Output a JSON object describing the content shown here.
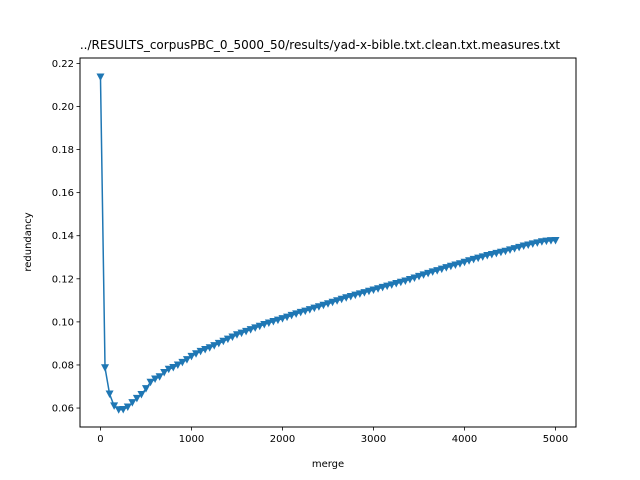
{
  "chart_data": {
    "type": "line",
    "title": "../RESULTS_corpusPBC_0_5000_50/results/yad-x-bible.txt.clean.txt.measures.txt",
    "xlabel": "merge",
    "ylabel": "redundancy",
    "xlim": [
      -225,
      5225
    ],
    "ylim": [
      0.0512,
      0.2225
    ],
    "xticks": [
      0,
      1000,
      2000,
      3000,
      4000,
      5000
    ],
    "yticks": [
      0.06,
      0.08,
      0.1,
      0.12,
      0.14,
      0.16,
      0.18,
      0.2,
      0.22
    ],
    "ytick_labels": [
      "0.06",
      "0.08",
      "0.10",
      "0.12",
      "0.14",
      "0.16",
      "0.18",
      "0.20",
      "0.22"
    ],
    "grid": false,
    "marker": "triangle-down",
    "line_color": "#1f77b4",
    "series": [
      {
        "x": [
          0,
          50,
          100,
          150,
          200,
          250,
          300,
          350,
          400,
          450,
          500,
          550,
          600,
          650,
          700,
          750,
          800,
          850,
          900,
          950,
          1000,
          1050,
          1100,
          1150,
          1200,
          1250,
          1300,
          1350,
          1400,
          1450,
          1500,
          1550,
          1600,
          1650,
          1700,
          1750,
          1800,
          1850,
          1900,
          1950,
          2000,
          2050,
          2100,
          2150,
          2200,
          2250,
          2300,
          2350,
          2400,
          2450,
          2500,
          2550,
          2600,
          2650,
          2700,
          2750,
          2800,
          2850,
          2900,
          2950,
          3000,
          3050,
          3100,
          3150,
          3200,
          3250,
          3300,
          3350,
          3400,
          3450,
          3500,
          3550,
          3600,
          3650,
          3700,
          3750,
          3800,
          3850,
          3900,
          3950,
          4000,
          4050,
          4100,
          4150,
          4200,
          4250,
          4300,
          4350,
          4400,
          4450,
          4500,
          4550,
          4600,
          4650,
          4700,
          4750,
          4800,
          4850,
          4900,
          4950,
          5000
        ],
        "y": [
          0.2137,
          0.0787,
          0.0665,
          0.061,
          0.0592,
          0.0593,
          0.0605,
          0.0625,
          0.0645,
          0.0663,
          0.069,
          0.072,
          0.0735,
          0.0745,
          0.0765,
          0.078,
          0.0788,
          0.08,
          0.0812,
          0.0825,
          0.084,
          0.0852,
          0.0863,
          0.0872,
          0.088,
          0.089,
          0.09,
          0.091,
          0.092,
          0.093,
          0.094,
          0.0948,
          0.0956,
          0.0964,
          0.0972,
          0.098,
          0.0988,
          0.0995,
          0.1002,
          0.1008,
          0.1015,
          0.1022,
          0.103,
          0.1037,
          0.1044,
          0.105,
          0.1057,
          0.1064,
          0.107,
          0.1077,
          0.1084,
          0.1091,
          0.1098,
          0.1105,
          0.1112,
          0.1118,
          0.1124,
          0.113,
          0.1136,
          0.1142,
          0.1148,
          0.1154,
          0.116,
          0.1166,
          0.1172,
          0.1178,
          0.1184,
          0.119,
          0.1197,
          0.1204,
          0.1211,
          0.1218,
          0.1225,
          0.1232,
          0.1238,
          0.1245,
          0.1252,
          0.1258,
          0.1264,
          0.127,
          0.1277,
          0.1284,
          0.129,
          0.1296,
          0.1302,
          0.1308,
          0.1313,
          0.1318,
          0.1323,
          0.1328,
          0.1334,
          0.134,
          0.1346,
          0.1352,
          0.1357,
          0.1362,
          0.1367,
          0.1372,
          0.1375,
          0.1377,
          0.1378
        ]
      }
    ]
  }
}
